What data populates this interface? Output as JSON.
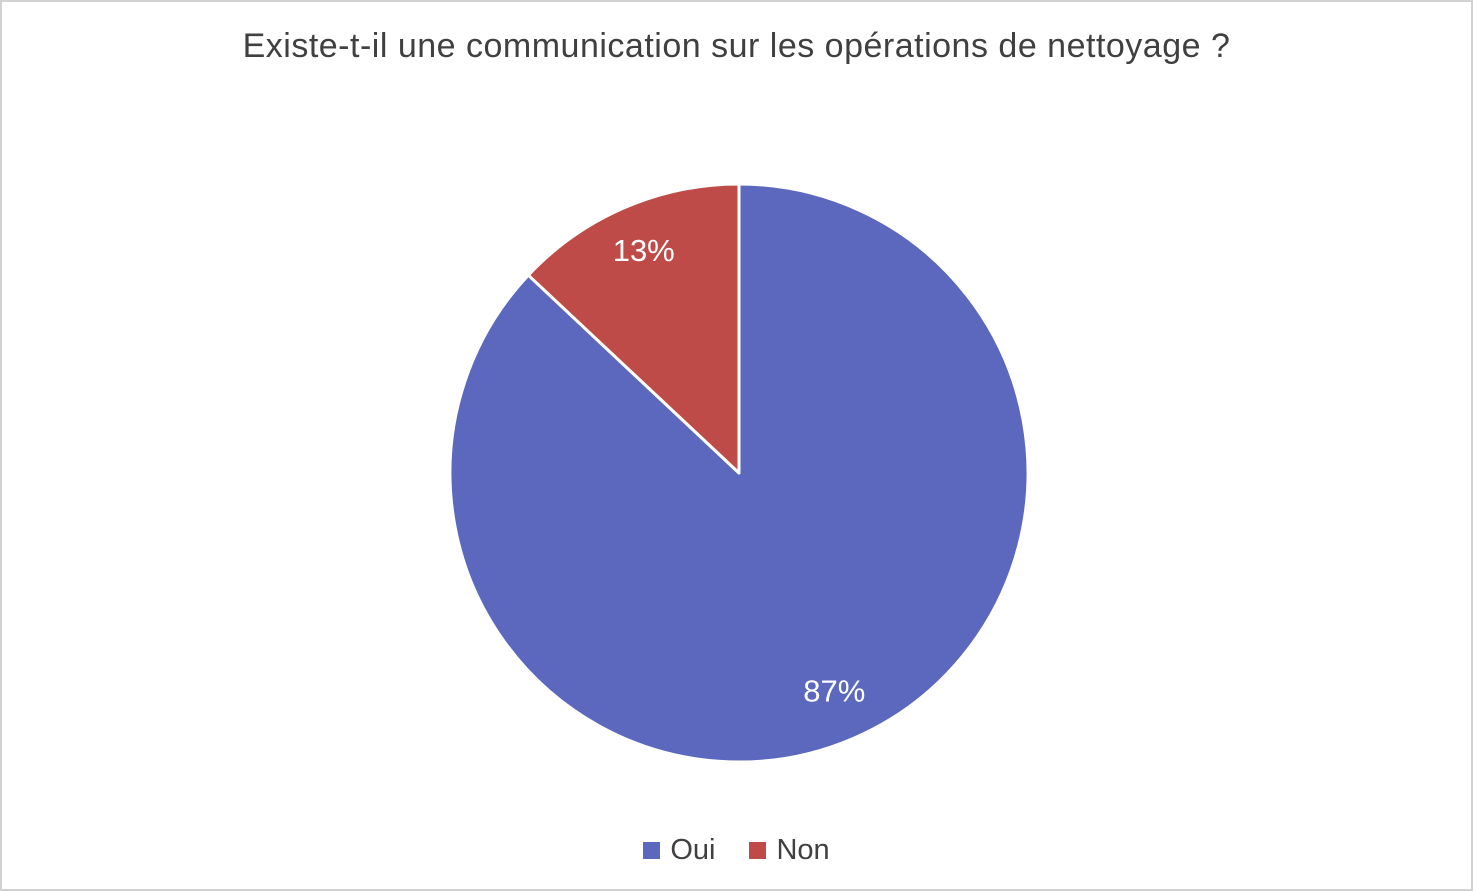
{
  "title": "Existe-t-il une communication sur les opérations de nettoyage ?",
  "chart_data": {
    "type": "pie",
    "categories": [
      "Oui",
      "Non"
    ],
    "values": [
      87,
      13
    ],
    "value_labels": [
      "87%",
      "13%"
    ],
    "colors": [
      "#5b68be",
      "#be4b48"
    ],
    "data_label_color": "#ffffff",
    "title": "Existe-t-il une communication sur les opérations de nettoyage ?",
    "legend_position": "bottom",
    "start_angle_deg": 0,
    "direction": "clockwise",
    "slice_border_color": "#ffffff"
  },
  "legend": {
    "items": [
      {
        "label": "Oui",
        "color": "#5b68be"
      },
      {
        "label": "Non",
        "color": "#be4b48"
      }
    ]
  }
}
